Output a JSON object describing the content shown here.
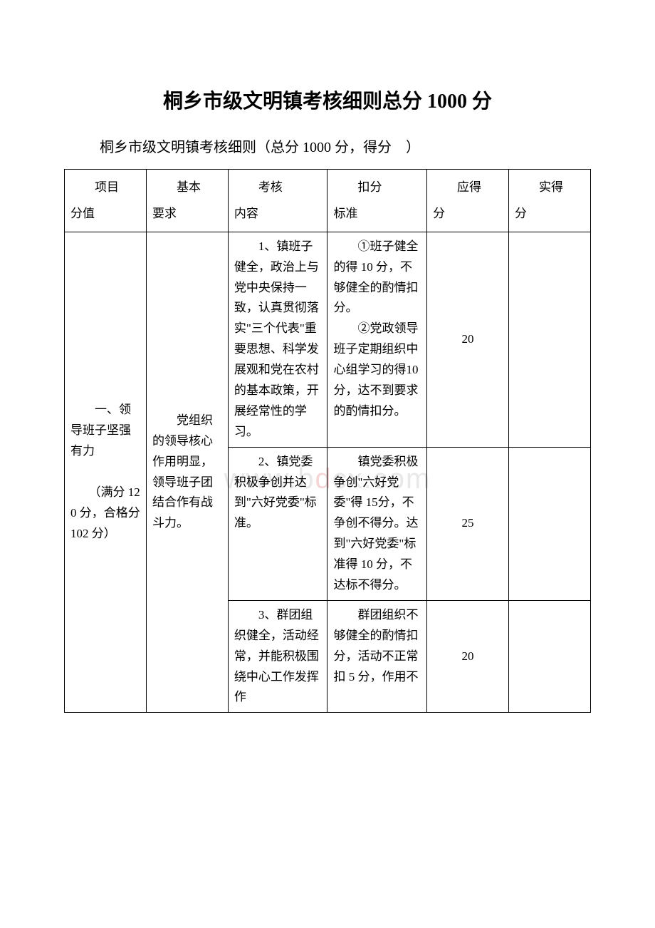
{
  "title": "桐乡市级文明镇考核细则总分 1000 分",
  "subtitle": "桐乡市级文明镇考核细则（总分 1000 分，得分　）",
  "watermark": {
    "left": "www.b",
    "mid": "d",
    "right": "cx.com"
  },
  "headers": {
    "c1a": "　　项目",
    "c1b": "分值",
    "c2a": "　　基本",
    "c2b": "要求",
    "c3a": "　　考核",
    "c3b": "内容",
    "c4a": "　　扣分",
    "c4b": "标准",
    "c5a": "　　应得",
    "c5b": "分",
    "c6a": "　　实得",
    "c6b": "分"
  },
  "category": {
    "line1": "　　一、领导班子坚强有力",
    "line2": "　　（满分 120 分，合格分102 分）"
  },
  "requirement": "　　党组织的领导核心作用明显，领导班子团结合作有战斗力。",
  "rows": [
    {
      "assess": "　　1、镇班子健全，政治上与党中央保持一致，认真贯彻落实\"三个代表\"重要思想、科学发展观和党在农村的基本政策，开展经常性的学习。",
      "deduct": "　　①班子健全的得 10 分，不够健全的酌情扣分。\n　　②党政领导班子定期组织中心组学习的得10 分，达不到要求的酌情扣分。",
      "score": "20",
      "actual": ""
    },
    {
      "assess": "　　2、镇党委积极争创并达到\"六好党委\"标准。",
      "deduct": "　　镇党委积极争创\"六好党委\"得 15分，不争创不得分。达到\"六好党委\"标准得 10 分，不达标不得分。",
      "score": "25",
      "actual": ""
    },
    {
      "assess": "　　3、群团组织健全，活动经常，并能积极围绕中心工作发挥作",
      "deduct": "　　群团组织不够健全的酌情扣分，活动不正常扣 5 分，作用不",
      "score": "20",
      "actual": ""
    }
  ]
}
